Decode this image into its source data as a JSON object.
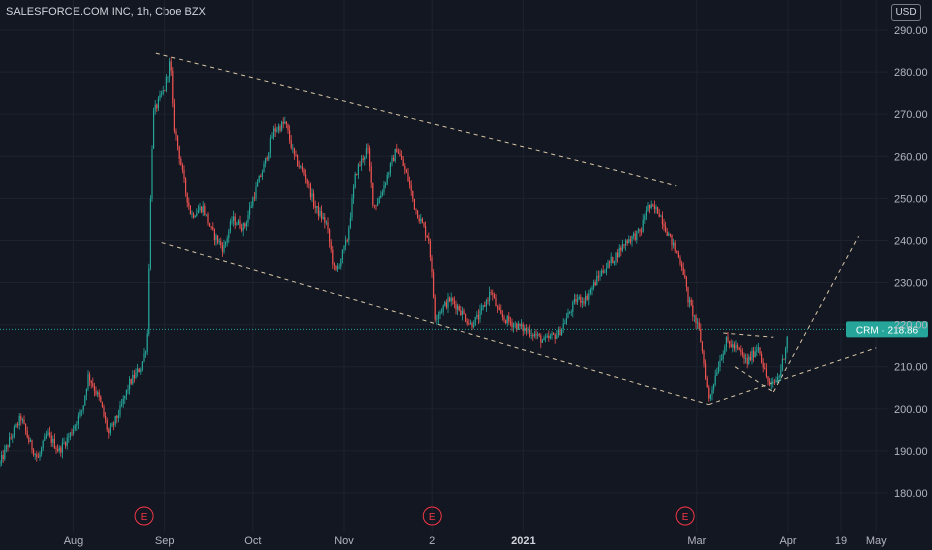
{
  "header": {
    "title": "SALESFORCE.COM INC, 1h, Cboe BZX",
    "currency": "USD"
  },
  "colors": {
    "background": "#131722",
    "up": "#26a69a",
    "down": "#ef5350",
    "trendline": "#d9c7a6",
    "price_line": "#26a69a",
    "earnings": "#f23645"
  },
  "chart_data": {
    "type": "candlestick",
    "symbol": "CRM",
    "last_price": 218.86,
    "price_label": "CRM · 218.86",
    "ylim": [
      172,
      295
    ],
    "yticks": [
      180,
      190,
      200,
      210,
      220,
      230,
      240,
      250,
      260,
      270,
      280,
      290
    ],
    "ytick_labels": [
      "180.00",
      "190.00",
      "200.00",
      "210.00",
      "220.00",
      "230.00",
      "240.00",
      "250.00",
      "260.00",
      "270.00",
      "280.00",
      "290.00"
    ],
    "xlim": [
      "2020-07-07",
      "2021-05-05"
    ],
    "xticks": [
      {
        "date": "2020-08-01",
        "label": "Aug"
      },
      {
        "date": "2020-09-01",
        "label": "Sep"
      },
      {
        "date": "2020-10-01",
        "label": "Oct"
      },
      {
        "date": "2020-11-01",
        "label": "Nov"
      },
      {
        "date": "2020-12-01",
        "label": "2"
      },
      {
        "date": "2021-01-01",
        "label": "2021",
        "bold": true
      },
      {
        "date": "2021-03-01",
        "label": "Mar"
      },
      {
        "date": "2021-04-01",
        "label": "Apr"
      },
      {
        "date": "2021-04-19",
        "label": "19"
      },
      {
        "date": "2021-05-01",
        "label": "May"
      }
    ],
    "earnings_markers": [
      {
        "date": "2020-08-25",
        "label": "E"
      },
      {
        "date": "2020-12-01",
        "label": "E"
      },
      {
        "date": "2021-02-25",
        "label": "E"
      }
    ],
    "price_path": [
      [
        "2020-07-07",
        187
      ],
      [
        "2020-07-10",
        192
      ],
      [
        "2020-07-14",
        198
      ],
      [
        "2020-07-17",
        192
      ],
      [
        "2020-07-20",
        188
      ],
      [
        "2020-07-23",
        194
      ],
      [
        "2020-07-27",
        190
      ],
      [
        "2020-07-31",
        194
      ],
      [
        "2020-08-04",
        200
      ],
      [
        "2020-08-06",
        208
      ],
      [
        "2020-08-10",
        202
      ],
      [
        "2020-08-13",
        194
      ],
      [
        "2020-08-17",
        200
      ],
      [
        "2020-08-20",
        206
      ],
      [
        "2020-08-24",
        210
      ],
      [
        "2020-08-26",
        216
      ],
      [
        "2020-08-27",
        246
      ],
      [
        "2020-08-28",
        270
      ],
      [
        "2020-09-01",
        276
      ],
      [
        "2020-09-03",
        283
      ],
      [
        "2020-09-04",
        268
      ],
      [
        "2020-09-08",
        252
      ],
      [
        "2020-09-10",
        246
      ],
      [
        "2020-09-14",
        248
      ],
      [
        "2020-09-17",
        242
      ],
      [
        "2020-09-21",
        238
      ],
      [
        "2020-09-24",
        245
      ],
      [
        "2020-09-28",
        243
      ],
      [
        "2020-10-01",
        250
      ],
      [
        "2020-10-05",
        258
      ],
      [
        "2020-10-08",
        266
      ],
      [
        "2020-10-12",
        268
      ],
      [
        "2020-10-15",
        260
      ],
      [
        "2020-10-19",
        255
      ],
      [
        "2020-10-22",
        248
      ],
      [
        "2020-10-26",
        244
      ],
      [
        "2020-10-29",
        232
      ],
      [
        "2020-11-02",
        240
      ],
      [
        "2020-11-05",
        256
      ],
      [
        "2020-11-09",
        262
      ],
      [
        "2020-11-11",
        248
      ],
      [
        "2020-11-13",
        250
      ],
      [
        "2020-11-16",
        256
      ],
      [
        "2020-11-19",
        262
      ],
      [
        "2020-11-23",
        254
      ],
      [
        "2020-11-25",
        248
      ],
      [
        "2020-11-30",
        240
      ],
      [
        "2020-12-02",
        222
      ],
      [
        "2020-12-07",
        226
      ],
      [
        "2020-12-10",
        224
      ],
      [
        "2020-12-14",
        220
      ],
      [
        "2020-12-17",
        222
      ],
      [
        "2020-12-21",
        228
      ],
      [
        "2020-12-24",
        222
      ],
      [
        "2020-12-29",
        220
      ],
      [
        "2021-01-04",
        218
      ],
      [
        "2021-01-08",
        216
      ],
      [
        "2021-01-13",
        218
      ],
      [
        "2021-01-19",
        226
      ],
      [
        "2021-01-22",
        226
      ],
      [
        "2021-01-27",
        232
      ],
      [
        "2021-02-01",
        236
      ],
      [
        "2021-02-05",
        240
      ],
      [
        "2021-02-10",
        242
      ],
      [
        "2021-02-12",
        248
      ],
      [
        "2021-02-16",
        247
      ],
      [
        "2021-02-19",
        242
      ],
      [
        "2021-02-24",
        234
      ],
      [
        "2021-02-26",
        226
      ],
      [
        "2021-03-02",
        218
      ],
      [
        "2021-03-04",
        208
      ],
      [
        "2021-03-05",
        202
      ],
      [
        "2021-03-08",
        210
      ],
      [
        "2021-03-11",
        216
      ],
      [
        "2021-03-15",
        214
      ],
      [
        "2021-03-18",
        211
      ],
      [
        "2021-03-22",
        215
      ],
      [
        "2021-03-24",
        209
      ],
      [
        "2021-03-26",
        205
      ],
      [
        "2021-03-29",
        208
      ],
      [
        "2021-03-31",
        214
      ],
      [
        "2021-04-01",
        218.86
      ]
    ],
    "trendlines": [
      {
        "from": [
          "2020-08-29",
          284.5
        ],
        "to": [
          "2021-02-22",
          253
        ]
      },
      {
        "from": [
          "2020-08-31",
          239.5
        ],
        "to": [
          "2021-03-05",
          201
        ]
      },
      {
        "from": [
          "2021-03-05",
          201
        ],
        "to": [
          "2021-05-01",
          214.5
        ]
      },
      {
        "from": [
          "2021-03-27",
          204
        ],
        "to": [
          "2021-04-25",
          241
        ]
      },
      {
        "from": [
          "2021-03-10",
          218
        ],
        "to": [
          "2021-03-27",
          217
        ]
      },
      {
        "from": [
          "2021-03-14",
          210
        ],
        "to": [
          "2021-03-27",
          204
        ]
      }
    ]
  }
}
